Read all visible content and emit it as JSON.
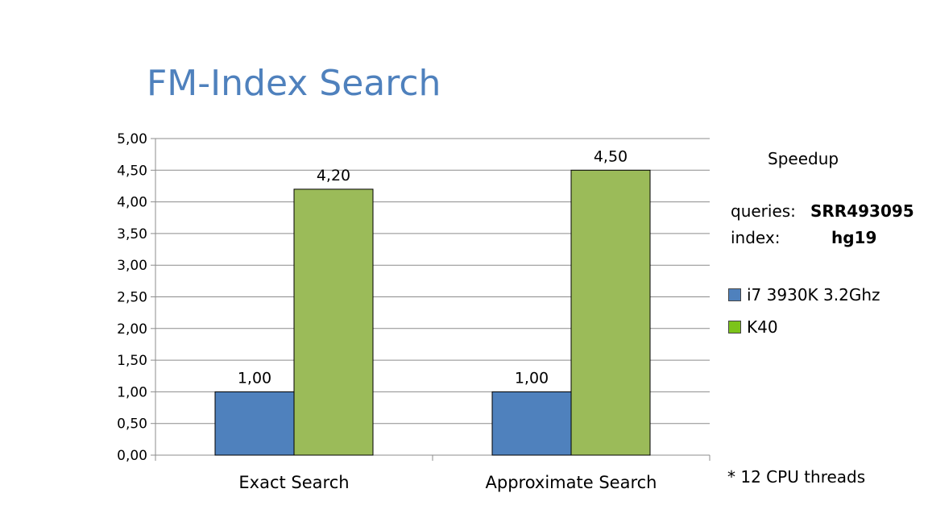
{
  "title": "FM-Index Search",
  "side_panel": {
    "heading": "Speedup",
    "queries_label": "queries:",
    "queries_value": "SRR493095",
    "index_label": "index:",
    "index_value": "hg19",
    "footnote": "* 12 CPU threads"
  },
  "colors": {
    "cpu": "#4f81bd",
    "gpu": "#9bbb59",
    "gpu_legend": "#7cc41a",
    "title": "#4f81bd"
  },
  "chart_data": {
    "type": "bar",
    "categories": [
      "Exact Search",
      "Approximate Search"
    ],
    "series": [
      {
        "name": "i7 3930K 3.2Ghz",
        "values": [
          1.0,
          1.0
        ],
        "labels": [
          "1,00",
          "1,00"
        ]
      },
      {
        "name": "K40",
        "values": [
          4.2,
          4.5
        ],
        "labels": [
          "4,20",
          "4,50"
        ]
      }
    ],
    "y_ticks": [
      "0,00",
      "0,50",
      "1,00",
      "1,50",
      "2,00",
      "2,50",
      "3,00",
      "3,50",
      "4,00",
      "4,50",
      "5,00"
    ],
    "ylim": [
      0,
      5
    ],
    "grid": true,
    "legend_position": "right"
  }
}
